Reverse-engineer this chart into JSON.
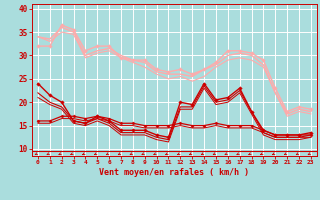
{
  "background_color": "#aadddd",
  "grid_color": "#ffffff",
  "xlabel": "Vent moyen/en rafales ( km/h )",
  "xlabel_color": "#cc0000",
  "xlim": [
    -0.5,
    23.5
  ],
  "ylim": [
    8.5,
    41
  ],
  "yticks": [
    10,
    15,
    20,
    25,
    30,
    35,
    40
  ],
  "xticks": [
    0,
    1,
    2,
    3,
    4,
    5,
    6,
    7,
    8,
    9,
    10,
    11,
    12,
    13,
    14,
    15,
    16,
    17,
    18,
    19,
    20,
    21,
    22,
    23
  ],
  "tick_color": "#cc0000",
  "lines": [
    {
      "x": [
        0,
        1,
        2,
        3,
        4,
        5,
        6,
        7,
        8,
        9,
        10,
        11,
        12,
        13,
        14,
        15,
        16,
        17,
        18,
        19,
        20,
        21,
        22,
        23
      ],
      "y": [
        32,
        32,
        36.5,
        35.5,
        31,
        32,
        32,
        29.5,
        29,
        29,
        27,
        26.5,
        27,
        26,
        27,
        28.5,
        31,
        31,
        30.5,
        29,
        23,
        18,
        19,
        18.5
      ],
      "color": "#ffaaaa",
      "lw": 1.0,
      "marker": "D",
      "ms": 1.8
    },
    {
      "x": [
        0,
        1,
        2,
        3,
        4,
        5,
        6,
        7,
        8,
        9,
        10,
        11,
        12,
        13,
        14,
        15,
        16,
        17,
        18,
        19,
        20,
        21,
        22,
        23
      ],
      "y": [
        34,
        33.5,
        36,
        35,
        30,
        31,
        31.5,
        30,
        29,
        28.5,
        26.5,
        26,
        26,
        25.5,
        27,
        28,
        30,
        30.5,
        30,
        28,
        22,
        17.5,
        18.5,
        18
      ],
      "color": "#ffaaaa",
      "lw": 1.0,
      "marker": null,
      "ms": 0
    },
    {
      "x": [
        0,
        1,
        2,
        3,
        4,
        5,
        6,
        7,
        8,
        9,
        10,
        11,
        12,
        13,
        14,
        15,
        16,
        17,
        18,
        19,
        20,
        21,
        22,
        23
      ],
      "y": [
        34,
        33,
        35,
        34.5,
        29.5,
        30.5,
        31,
        29.5,
        28.5,
        27.5,
        26,
        25,
        25.5,
        24.5,
        25.5,
        27.5,
        29,
        29.5,
        29,
        27.5,
        22,
        17,
        18,
        17.5
      ],
      "color": "#ffaaaa",
      "lw": 0.8,
      "marker": null,
      "ms": 0
    },
    {
      "x": [
        0,
        1,
        2,
        3,
        4,
        5,
        6,
        7,
        8,
        9,
        10,
        11,
        12,
        13,
        14,
        15,
        16,
        17,
        18,
        19,
        20,
        21,
        22,
        23
      ],
      "y": [
        24,
        21.5,
        20,
        16,
        15.5,
        17,
        16,
        14,
        14,
        14,
        13,
        12.5,
        20,
        19.5,
        24,
        20.5,
        21,
        23,
        18,
        14,
        13,
        13,
        13,
        13.5
      ],
      "color": "#cc0000",
      "lw": 1.0,
      "marker": "D",
      "ms": 1.8
    },
    {
      "x": [
        0,
        1,
        2,
        3,
        4,
        5,
        6,
        7,
        8,
        9,
        10,
        11,
        12,
        13,
        14,
        15,
        16,
        17,
        18,
        19,
        20,
        21,
        22,
        23
      ],
      "y": [
        22,
        20,
        19,
        16,
        15.5,
        16.5,
        15.5,
        13.5,
        13.5,
        13.5,
        12.5,
        12,
        19,
        19,
        23.5,
        20,
        20.5,
        22.5,
        18,
        13.5,
        12.5,
        12.5,
        12.5,
        13
      ],
      "color": "#cc0000",
      "lw": 0.8,
      "marker": null,
      "ms": 0
    },
    {
      "x": [
        0,
        1,
        2,
        3,
        4,
        5,
        6,
        7,
        8,
        9,
        10,
        11,
        12,
        13,
        14,
        15,
        16,
        17,
        18,
        19,
        20,
        21,
        22,
        23
      ],
      "y": [
        21,
        19.5,
        18.5,
        15.5,
        15,
        16,
        15,
        13,
        13,
        13,
        12,
        11.5,
        18.5,
        18.5,
        23,
        19.5,
        20,
        22,
        17.5,
        13,
        12,
        12,
        12,
        12.5
      ],
      "color": "#cc0000",
      "lw": 0.7,
      "marker": null,
      "ms": 0
    },
    {
      "x": [
        0,
        1,
        2,
        3,
        4,
        5,
        6,
        7,
        8,
        9,
        10,
        11,
        12,
        13,
        14,
        15,
        16,
        17,
        18,
        19,
        20,
        21,
        22,
        23
      ],
      "y": [
        16,
        16,
        17,
        17,
        16.5,
        17,
        16.5,
        15.5,
        15.5,
        15,
        15,
        15,
        15.5,
        15,
        15,
        15.5,
        15,
        15,
        15,
        14,
        13,
        13,
        13,
        13
      ],
      "color": "#cc0000",
      "lw": 0.9,
      "marker": "D",
      "ms": 1.6
    },
    {
      "x": [
        0,
        1,
        2,
        3,
        4,
        5,
        6,
        7,
        8,
        9,
        10,
        11,
        12,
        13,
        14,
        15,
        16,
        17,
        18,
        19,
        20,
        21,
        22,
        23
      ],
      "y": [
        15.5,
        15.5,
        16.5,
        16.5,
        16,
        16.5,
        16,
        15,
        15,
        14.5,
        14.5,
        14.5,
        15,
        14.5,
        14.5,
        15,
        14.5,
        14.5,
        14.5,
        13.5,
        12.5,
        12.5,
        12.5,
        12.5
      ],
      "color": "#cc0000",
      "lw": 0.7,
      "marker": null,
      "ms": 0
    }
  ],
  "arrow_color": "#cc0000",
  "arrow_count": 24,
  "hline_y": 9.55
}
